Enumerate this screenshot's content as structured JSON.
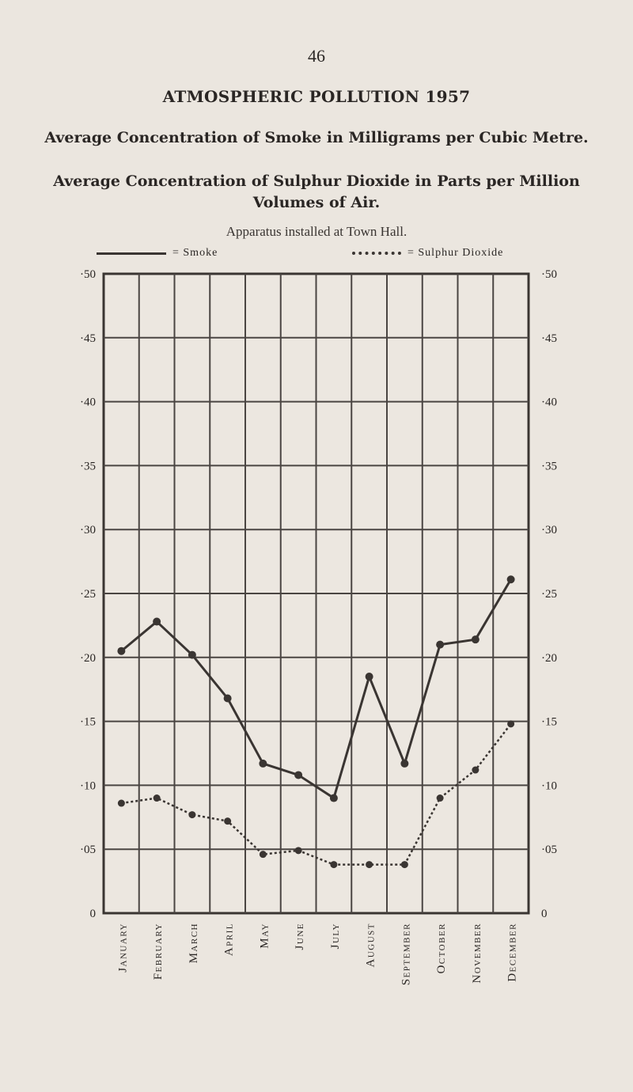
{
  "page": {
    "number": "46",
    "title": "ATMOSPHERIC POLLUTION 1957",
    "subtitle_smoke": "Average Concentration of Smoke in Milligrams per Cubic Metre.",
    "subtitle_so2": "Average Concentration of Sulphur Dioxide in Parts per Million Volumes of Air.",
    "note": "Apparatus installed at Town Hall.",
    "legend_smoke": "= Smoke",
    "legend_so2": "= Sulphur Dioxide"
  },
  "chart_data": {
    "type": "line",
    "title": "ATMOSPHERIC POLLUTION 1957",
    "categories": [
      "January",
      "February",
      "March",
      "April",
      "May",
      "June",
      "July",
      "August",
      "September",
      "October",
      "November",
      "December"
    ],
    "yticks": [
      "0",
      "·05",
      "·10",
      "·15",
      "·20",
      "·25",
      "·30",
      "·35",
      "·40",
      "·45",
      "·50"
    ],
    "ylim": [
      0,
      0.5
    ],
    "grid": true,
    "legend_position": "top",
    "series": [
      {
        "name": "Smoke",
        "style": "solid",
        "color": "#3a3532",
        "values": [
          0.205,
          0.228,
          0.202,
          0.168,
          0.117,
          0.108,
          0.09,
          0.185,
          0.117,
          0.21,
          0.214,
          0.261
        ]
      },
      {
        "name": "Sulphur Dioxide",
        "style": "dotted",
        "color": "#3a3532",
        "values": [
          0.086,
          0.09,
          0.077,
          0.072,
          0.046,
          0.049,
          0.038,
          0.038,
          0.038,
          0.09,
          0.112,
          0.148
        ]
      }
    ]
  }
}
